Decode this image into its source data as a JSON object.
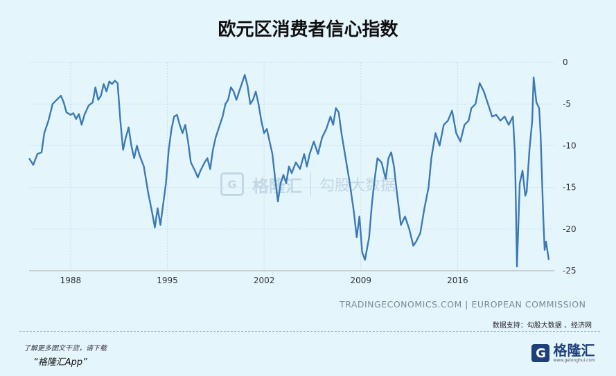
{
  "watermark": {
    "brand": "格隆汇",
    "brand2": "勾股大数据"
  },
  "source_text": "TRADINGECONOMICS.COM | EUROPEAN COMMISSION",
  "data_support": "数据支持：勾股大数据 、经济网",
  "footer": {
    "download_tip": "了解更多图文干货，请下载",
    "app_name": "“格隆汇App”",
    "logo_name": "格隆汇",
    "logo_url": "www.gelonghui.com"
  },
  "colors": {
    "line": "#3b7ab4",
    "background": "#e5f5fc"
  },
  "chart_data": {
    "type": "line",
    "title": "欧元区消费者信心指数",
    "x_ticks": [
      "1988",
      "1995",
      "2002",
      "2009",
      "2016"
    ],
    "y_ticks": [
      "0",
      "-5",
      "-10",
      "-15",
      "-20",
      "-25"
    ],
    "ylim": [
      -25,
      0
    ],
    "xlim": [
      1985.0,
      2023.0
    ],
    "grid": true,
    "series": [
      {
        "values": [
          [
            1985.0,
            -11.5
          ],
          [
            1985.3,
            -12.3
          ],
          [
            1985.6,
            -11.0
          ],
          [
            1985.9,
            -10.8
          ],
          [
            1986.1,
            -8.5
          ],
          [
            1986.4,
            -7.0
          ],
          [
            1986.7,
            -5.0
          ],
          [
            1987.0,
            -4.5
          ],
          [
            1987.3,
            -4.0
          ],
          [
            1987.5,
            -4.8
          ],
          [
            1987.7,
            -6.0
          ],
          [
            1988.0,
            -6.3
          ],
          [
            1988.2,
            -6.1
          ],
          [
            1988.4,
            -6.8
          ],
          [
            1988.6,
            -6.2
          ],
          [
            1988.8,
            -7.5
          ],
          [
            1989.0,
            -6.3
          ],
          [
            1989.3,
            -5.2
          ],
          [
            1989.6,
            -4.8
          ],
          [
            1989.8,
            -3.0
          ],
          [
            1990.0,
            -4.5
          ],
          [
            1990.2,
            -4.0
          ],
          [
            1990.4,
            -2.6
          ],
          [
            1990.6,
            -3.5
          ],
          [
            1990.8,
            -2.3
          ],
          [
            1991.0,
            -2.6
          ],
          [
            1991.2,
            -2.2
          ],
          [
            1991.4,
            -2.5
          ],
          [
            1991.6,
            -7.0
          ],
          [
            1991.8,
            -10.5
          ],
          [
            1992.0,
            -9.0
          ],
          [
            1992.2,
            -7.8
          ],
          [
            1992.4,
            -10.0
          ],
          [
            1992.6,
            -11.5
          ],
          [
            1992.8,
            -10.0
          ],
          [
            1993.0,
            -11.2
          ],
          [
            1993.3,
            -12.5
          ],
          [
            1993.6,
            -15.5
          ],
          [
            1993.9,
            -18.0
          ],
          [
            1994.1,
            -19.8
          ],
          [
            1994.3,
            -17.5
          ],
          [
            1994.5,
            -19.5
          ],
          [
            1994.7,
            -17.0
          ],
          [
            1994.9,
            -14.5
          ],
          [
            1995.1,
            -10.5
          ],
          [
            1995.3,
            -8.0
          ],
          [
            1995.5,
            -6.5
          ],
          [
            1995.7,
            -6.3
          ],
          [
            1995.9,
            -7.5
          ],
          [
            1996.1,
            -8.5
          ],
          [
            1996.3,
            -7.5
          ],
          [
            1996.5,
            -9.5
          ],
          [
            1996.7,
            -12.0
          ],
          [
            1997.0,
            -13.0
          ],
          [
            1997.2,
            -13.8
          ],
          [
            1997.4,
            -13.0
          ],
          [
            1997.7,
            -12.0
          ],
          [
            1997.9,
            -11.5
          ],
          [
            1998.1,
            -12.8
          ],
          [
            1998.3,
            -10.5
          ],
          [
            1998.5,
            -9.0
          ],
          [
            1998.8,
            -7.5
          ],
          [
            1999.0,
            -6.5
          ],
          [
            1999.2,
            -5.0
          ],
          [
            1999.4,
            -4.5
          ],
          [
            1999.6,
            -3.0
          ],
          [
            1999.8,
            -3.5
          ],
          [
            2000.0,
            -4.5
          ],
          [
            2000.2,
            -3.5
          ],
          [
            2000.4,
            -2.5
          ],
          [
            2000.6,
            -1.5
          ],
          [
            2000.8,
            -2.8
          ],
          [
            2001.0,
            -5.0
          ],
          [
            2001.2,
            -4.5
          ],
          [
            2001.4,
            -3.5
          ],
          [
            2001.6,
            -5.0
          ],
          [
            2001.8,
            -7.0
          ],
          [
            2002.0,
            -8.5
          ],
          [
            2002.2,
            -8.0
          ],
          [
            2002.4,
            -9.5
          ],
          [
            2002.6,
            -11.0
          ],
          [
            2002.8,
            -14.0
          ],
          [
            2003.0,
            -16.7
          ],
          [
            2003.2,
            -14.5
          ],
          [
            2003.4,
            -13.5
          ],
          [
            2003.6,
            -14.5
          ],
          [
            2003.8,
            -12.5
          ],
          [
            2004.0,
            -13.3
          ],
          [
            2004.3,
            -12.0
          ],
          [
            2004.6,
            -12.8
          ],
          [
            2004.9,
            -11.0
          ],
          [
            2005.1,
            -12.5
          ],
          [
            2005.3,
            -11.0
          ],
          [
            2005.6,
            -9.5
          ],
          [
            2005.9,
            -11.0
          ],
          [
            2006.2,
            -9.0
          ],
          [
            2006.5,
            -8.0
          ],
          [
            2006.8,
            -6.5
          ],
          [
            2007.0,
            -7.5
          ],
          [
            2007.2,
            -5.5
          ],
          [
            2007.4,
            -6.0
          ],
          [
            2007.6,
            -8.5
          ],
          [
            2007.9,
            -11.5
          ],
          [
            2008.2,
            -14.5
          ],
          [
            2008.5,
            -18.0
          ],
          [
            2008.7,
            -21.0
          ],
          [
            2008.9,
            -18.5
          ],
          [
            2009.1,
            -22.8
          ],
          [
            2009.3,
            -23.7
          ],
          [
            2009.6,
            -21.0
          ],
          [
            2009.8,
            -17.0
          ],
          [
            2010.0,
            -14.0
          ],
          [
            2010.2,
            -11.5
          ],
          [
            2010.5,
            -12.0
          ],
          [
            2010.8,
            -14.0
          ],
          [
            2011.0,
            -11.5
          ],
          [
            2011.2,
            -10.8
          ],
          [
            2011.4,
            -12.5
          ],
          [
            2011.6,
            -15.5
          ],
          [
            2011.9,
            -19.5
          ],
          [
            2012.2,
            -18.5
          ],
          [
            2012.5,
            -20.0
          ],
          [
            2012.8,
            -22.0
          ],
          [
            2013.0,
            -21.5
          ],
          [
            2013.3,
            -20.5
          ],
          [
            2013.6,
            -17.5
          ],
          [
            2013.9,
            -15.0
          ],
          [
            2014.1,
            -11.5
          ],
          [
            2014.4,
            -8.5
          ],
          [
            2014.7,
            -10.0
          ],
          [
            2015.0,
            -7.5
          ],
          [
            2015.3,
            -7.0
          ],
          [
            2015.6,
            -5.8
          ],
          [
            2015.9,
            -8.5
          ],
          [
            2016.2,
            -9.5
          ],
          [
            2016.5,
            -7.5
          ],
          [
            2016.8,
            -7.0
          ],
          [
            2017.0,
            -5.5
          ],
          [
            2017.3,
            -5.0
          ],
          [
            2017.6,
            -2.5
          ],
          [
            2017.9,
            -3.5
          ],
          [
            2018.2,
            -5.0
          ],
          [
            2018.5,
            -6.5
          ],
          [
            2018.8,
            -6.3
          ],
          [
            2019.1,
            -7.0
          ],
          [
            2019.4,
            -6.5
          ],
          [
            2019.7,
            -7.5
          ],
          [
            2020.0,
            -6.5
          ],
          [
            2020.15,
            -11.0
          ],
          [
            2020.3,
            -24.5
          ],
          [
            2020.5,
            -14.5
          ],
          [
            2020.7,
            -13.0
          ],
          [
            2020.9,
            -16.0
          ],
          [
            2021.0,
            -15.5
          ],
          [
            2021.2,
            -10.5
          ],
          [
            2021.4,
            -7.0
          ],
          [
            2021.5,
            -1.8
          ],
          [
            2021.7,
            -4.8
          ],
          [
            2021.9,
            -5.5
          ],
          [
            2022.0,
            -8.5
          ],
          [
            2022.2,
            -18.5
          ],
          [
            2022.3,
            -22.5
          ],
          [
            2022.4,
            -21.5
          ],
          [
            2022.6,
            -23.7
          ]
        ]
      }
    ]
  }
}
